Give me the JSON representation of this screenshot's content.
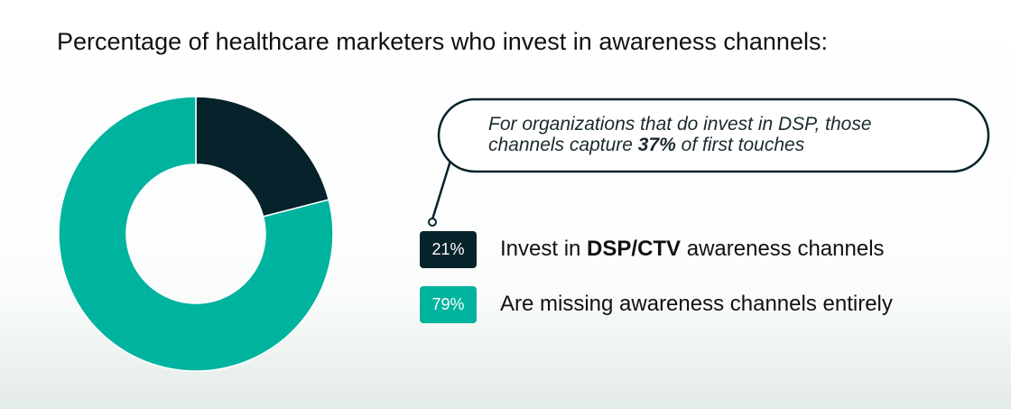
{
  "chart_data": {
    "type": "donut",
    "title": "Percentage of healthcare marketers who invest in awareness channels:",
    "values": [
      21,
      79
    ],
    "value_labels": [
      "21%",
      "79%"
    ],
    "colors": [
      "#06222a",
      "#00b39f"
    ],
    "labels": [
      [
        {
          "text": "Invest in "
        },
        {
          "text": "DSP/CTV",
          "bold": true
        },
        {
          "text": " awareness channels"
        }
      ],
      [
        {
          "text": "Are missing awareness channels entirely"
        }
      ]
    ],
    "annotation": [
      [
        {
          "text": "For organizations that do invest in DSP, those"
        }
      ],
      [
        {
          "text": "channels capture "
        },
        {
          "text": "37%",
          "bold": true
        },
        {
          "text": " of first touches"
        }
      ]
    ]
  }
}
